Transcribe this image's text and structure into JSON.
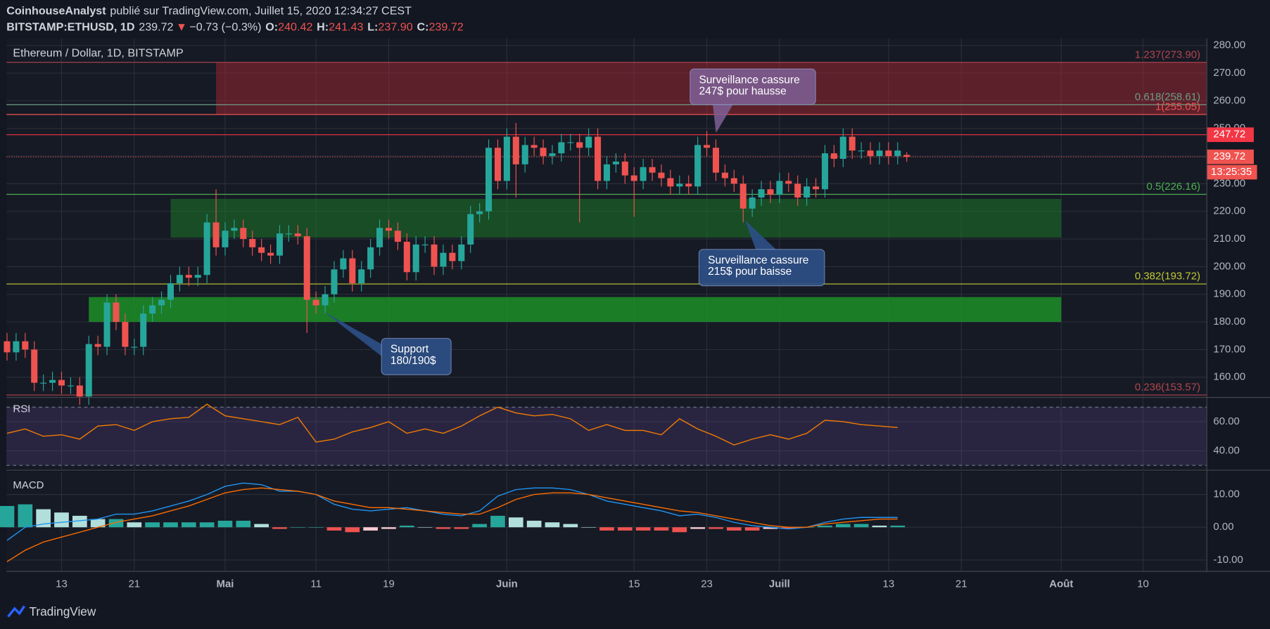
{
  "header": {
    "author": "CoinhouseAnalyst",
    "published": "publié sur TradingView.com, Juillet 15, 2020 12:34:27 CEST",
    "symbol": "BITSTAMP:ETHUSD, 1D",
    "last": "239.72",
    "arrow": "▼",
    "change": "−0.73 (−0.3%)",
    "o_label": "O:",
    "o": "240.42",
    "h_label": "H:",
    "h": "241.43",
    "l_label": "L:",
    "l": "237.90",
    "c_label": "C:",
    "c": "239.72"
  },
  "footer": {
    "brand": "TradingView"
  },
  "chart_data": [
    {
      "type": "candlestick",
      "title": "Ethereum / Dollar, 1D, BITSTAMP",
      "x": [
        6,
        7,
        8,
        9,
        10,
        11,
        12,
        13,
        14,
        15,
        16,
        17,
        18,
        19,
        20,
        21,
        22,
        23,
        24,
        25,
        26,
        27,
        28,
        29,
        30,
        31,
        32,
        33,
        34,
        35,
        36,
        37,
        38,
        39,
        40,
        41,
        42,
        43,
        44,
        45,
        46,
        47,
        48,
        49,
        50,
        51,
        52,
        53,
        54,
        55,
        56,
        57,
        58,
        59,
        60,
        61,
        62,
        63,
        64,
        65,
        66,
        67,
        68,
        69,
        70,
        71,
        72,
        73,
        74,
        75,
        76,
        77,
        78,
        79,
        80,
        81,
        82,
        83,
        84,
        85,
        86,
        87,
        88,
        89,
        90,
        91,
        92,
        93,
        94,
        95,
        96,
        97,
        98,
        99,
        100,
        101,
        102,
        103,
        104,
        105
      ],
      "open": [
        173,
        169,
        173,
        170,
        158,
        158,
        159,
        157,
        157,
        153,
        172,
        171,
        187,
        180,
        171,
        171,
        183,
        186,
        188,
        194,
        197,
        196,
        197,
        216,
        207,
        213,
        214,
        210,
        207,
        205,
        204,
        212,
        212,
        211,
        188,
        186,
        190,
        199,
        203,
        194,
        199,
        207,
        214,
        213,
        209,
        198,
        208,
        208,
        200,
        205,
        202,
        208,
        219,
        220,
        243,
        231,
        247,
        237,
        244,
        243,
        240,
        241,
        245,
        245,
        243,
        247,
        231,
        237,
        238,
        233,
        231,
        236,
        234,
        232,
        229,
        230,
        229,
        244,
        243,
        234,
        232,
        230,
        221,
        225,
        228,
        226,
        231,
        230,
        225,
        229,
        228,
        241,
        239,
        247,
        242,
        242,
        240,
        242,
        240,
        240.42
      ],
      "high": [
        176,
        176,
        176,
        173,
        161,
        162,
        162,
        160,
        160,
        175,
        175,
        190,
        190,
        183,
        174,
        186,
        189,
        191,
        197,
        200,
        200,
        200,
        219,
        228,
        216,
        217,
        217,
        213,
        210,
        208,
        215,
        215,
        215,
        214,
        191,
        193,
        202,
        206,
        206,
        202,
        210,
        217,
        217,
        216,
        212,
        211,
        211,
        211,
        208,
        208,
        211,
        222,
        223,
        246,
        246,
        250,
        252,
        247,
        247,
        246,
        244,
        248,
        248,
        248,
        250,
        250,
        240,
        241,
        241,
        236,
        239,
        239,
        237,
        235,
        233,
        233,
        247,
        249,
        246,
        237,
        235,
        233,
        228,
        231,
        231,
        234,
        234,
        233,
        232,
        232,
        244,
        244,
        250,
        250,
        245,
        245,
        245,
        245,
        245,
        241.43
      ],
      "low": [
        166,
        166,
        167,
        155,
        155,
        155,
        154,
        154,
        150,
        150,
        168,
        168,
        177,
        168,
        168,
        168,
        180,
        183,
        185,
        191,
        193,
        193,
        194,
        204,
        204,
        210,
        207,
        204,
        202,
        201,
        201,
        209,
        208,
        176,
        183,
        183,
        187,
        196,
        191,
        191,
        196,
        204,
        210,
        206,
        195,
        195,
        205,
        197,
        197,
        199,
        199,
        205,
        216,
        217,
        228,
        228,
        225,
        234,
        240,
        237,
        237,
        238,
        242,
        216,
        240,
        228,
        228,
        234,
        230,
        218,
        228,
        231,
        229,
        226,
        226,
        226,
        226,
        240,
        231,
        229,
        227,
        216,
        218,
        222,
        223,
        223,
        227,
        222,
        222,
        225,
        225,
        236,
        236,
        239,
        239,
        237,
        237,
        237,
        237,
        237.9
      ],
      "close": [
        169,
        173,
        170,
        158,
        158,
        159,
        157,
        157,
        153,
        172,
        171,
        187,
        180,
        171,
        171,
        183,
        186,
        188,
        194,
        197,
        196,
        197,
        216,
        207,
        213,
        214,
        210,
        207,
        205,
        204,
        212,
        212,
        211,
        188,
        186,
        190,
        199,
        203,
        194,
        199,
        207,
        214,
        213,
        209,
        198,
        208,
        208,
        200,
        205,
        202,
        208,
        219,
        220,
        243,
        231,
        247,
        237,
        244,
        243,
        240,
        241,
        245,
        245,
        243,
        247,
        231,
        237,
        238,
        233,
        231,
        236,
        234,
        232,
        229,
        230,
        229,
        244,
        243,
        234,
        232,
        230,
        221,
        225,
        228,
        226,
        231,
        230,
        225,
        229,
        228,
        241,
        239,
        247,
        242,
        242,
        240,
        242,
        240,
        242,
        239.72
      ],
      "up_color": "#26a69a",
      "down_color": "#ef5350",
      "xlim": [
        5.94,
        138.02
      ],
      "xticks": [
        {
          "value": 12,
          "label": "13"
        },
        {
          "value": 20,
          "label": "21"
        },
        {
          "value": 30,
          "label": "Mai"
        },
        {
          "value": 40,
          "label": "11"
        },
        {
          "value": 48,
          "label": "19"
        },
        {
          "value": 61,
          "label": "Juin"
        },
        {
          "value": 75,
          "label": "15"
        },
        {
          "value": 83,
          "label": "23"
        },
        {
          "value": 91,
          "label": "Juill"
        },
        {
          "value": 103,
          "label": "13"
        },
        {
          "value": 111,
          "label": "21"
        },
        {
          "value": 122,
          "label": "Août"
        },
        {
          "value": 131,
          "label": "10"
        }
      ],
      "ylim": [
        152.98,
        282.63
      ],
      "yticks": [
        {
          "value": 160,
          "label": "160.00"
        },
        {
          "value": 170,
          "label": "170.00"
        },
        {
          "value": 180,
          "label": "180.00"
        },
        {
          "value": 190,
          "label": "190.00"
        },
        {
          "value": 200,
          "label": "200.00"
        },
        {
          "value": 210,
          "label": "210.00"
        },
        {
          "value": 220,
          "label": "220.00"
        },
        {
          "value": 230,
          "label": "230.00"
        },
        {
          "value": 240,
          "label": "240.00"
        },
        {
          "value": 250,
          "label": "250.00"
        },
        {
          "value": 260,
          "label": "260.00"
        },
        {
          "value": 270,
          "label": "270.00"
        },
        {
          "value": 280,
          "label": "280.00"
        }
      ],
      "grid": true,
      "zones": [
        {
          "from": 255.05,
          "to": 273.9,
          "x_from": 29,
          "color": "rgba(178,40,51,0.45)"
        },
        {
          "from": 210.5,
          "to": 224.5,
          "x_from": 24,
          "x_to": 122,
          "color": "rgba(27,120,40,0.55)"
        },
        {
          "from": 180,
          "to": 189,
          "x_from": 15,
          "x_to": 122,
          "color": "rgba(30,150,40,0.8)"
        }
      ],
      "levels": [
        {
          "label": "1.237(273.90)",
          "value": 273.9,
          "color": "#b2454d"
        },
        {
          "label": "0.618(258.61)",
          "value": 258.61,
          "color": "#6d9e84"
        },
        {
          "label": "1(255.05)",
          "value": 255.05,
          "color": "#ef5350"
        },
        {
          "label": "0.5(226.16)",
          "value": 226.16,
          "color": "#4caf50"
        },
        {
          "label": "0.382(193.72)",
          "value": 193.72,
          "color": "#c0ca33"
        },
        {
          "label": "0.236(153.57)",
          "value": 153.57,
          "color": "#b2454d"
        }
      ],
      "alert_line": {
        "value": 247.72,
        "label": "247.72",
        "color": "#f23645"
      },
      "last_price": {
        "value": 239.72,
        "label": "239.72",
        "color": "#ef5350"
      },
      "countdown": "13:25:35",
      "annotations": [
        {
          "lines": [
            "Surveillance cassure",
            "247$ pour hausse"
          ],
          "color": "rgba(126,96,150,0.85)"
        },
        {
          "lines": [
            "Surveillance cassure",
            "215$ pour baisse"
          ],
          "color": "rgba(45,80,135,0.9)"
        },
        {
          "lines": [
            "Support",
            "180/190$"
          ],
          "color": "rgba(45,80,135,0.9)"
        }
      ]
    },
    {
      "type": "line",
      "title": "RSI",
      "x": [
        6,
        8,
        10,
        12,
        14,
        16,
        18,
        20,
        22,
        24,
        26,
        28,
        30,
        32,
        34,
        36,
        38,
        40,
        42,
        44,
        46,
        48,
        50,
        52,
        54,
        56,
        58,
        60,
        62,
        64,
        66,
        68,
        70,
        72,
        74,
        76,
        78,
        80,
        82,
        84,
        86,
        88,
        90,
        92,
        94,
        96,
        98,
        100,
        102,
        104
      ],
      "series": [
        {
          "color": "#f57c00",
          "values": [
            52,
            55,
            50,
            51,
            48,
            57,
            58,
            54,
            60,
            62,
            63,
            72,
            64,
            62,
            60,
            58,
            63,
            46,
            48,
            53,
            56,
            60,
            52,
            55,
            52,
            57,
            64,
            70,
            66,
            64,
            65,
            62,
            54,
            58,
            54,
            54,
            51,
            62,
            55,
            50,
            44,
            48,
            51,
            48,
            52,
            61,
            60,
            58,
            57,
            56
          ]
        }
      ],
      "ylim": [
        27.2,
        76.1
      ],
      "yticks": [
        {
          "value": 40,
          "label": "40.00"
        },
        {
          "value": 60,
          "label": "60.00"
        }
      ],
      "bands": [
        30,
        70
      ],
      "band_color": "rgba(126,87,194,0.18)"
    },
    {
      "type": "macd",
      "title": "MACD",
      "x": [
        6,
        8,
        10,
        12,
        14,
        16,
        18,
        20,
        22,
        24,
        26,
        28,
        30,
        32,
        34,
        36,
        38,
        40,
        42,
        44,
        46,
        48,
        50,
        52,
        54,
        56,
        58,
        60,
        62,
        64,
        66,
        68,
        70,
        72,
        74,
        76,
        78,
        80,
        82,
        84,
        86,
        88,
        90,
        92,
        94,
        96,
        98,
        100,
        102,
        104
      ],
      "series": [
        {
          "color": "#2196f3",
          "values": [
            -4,
            0,
            1,
            1.5,
            2,
            2.5,
            4,
            4,
            5,
            6.5,
            8,
            10,
            12.5,
            13.5,
            13,
            11,
            11,
            10,
            7,
            5.5,
            5,
            5.5,
            6,
            5,
            4,
            3.5,
            5,
            9.5,
            11.5,
            12,
            12,
            11.5,
            10,
            8,
            7,
            6,
            5,
            3.5,
            4,
            3,
            1.5,
            0.5,
            0,
            -0.5,
            0,
            1.5,
            2.5,
            3,
            3,
            3
          ]
        },
        {
          "color": "#ff6d00",
          "values": [
            -10.5,
            -7,
            -4.5,
            -3,
            -1.5,
            0,
            1.5,
            2.5,
            3.5,
            5,
            6.5,
            8.5,
            10.5,
            11.5,
            12,
            11.5,
            11,
            10,
            8,
            7,
            6,
            6,
            5.5,
            5,
            4.5,
            4,
            4,
            6,
            8.5,
            10,
            10.5,
            10.5,
            10,
            9,
            8,
            7,
            6,
            5,
            4.5,
            3.5,
            2.5,
            1.5,
            0.5,
            0,
            0,
            1,
            1.5,
            2,
            2.5,
            2.5
          ]
        }
      ],
      "histogram": [
        6.5,
        7,
        5.5,
        4.5,
        3.5,
        2.5,
        2.5,
        1.5,
        1.5,
        1.5,
        1.5,
        1.5,
        2,
        2,
        1,
        -0.5,
        0,
        0,
        -1,
        -1.5,
        -1,
        -0.5,
        0.5,
        0,
        -0.5,
        -0.5,
        1,
        3.5,
        3,
        2,
        1.5,
        1,
        0,
        -1,
        -1,
        -1,
        -1,
        -1.5,
        -0.5,
        -0.5,
        -1,
        -1,
        -0.5,
        -0.5,
        0,
        0.5,
        1,
        1,
        0.5,
        0.5
      ],
      "hist_colors": [
        "#26a69a",
        "#b2dfdb",
        "#ef5350",
        "#ffcdd2"
      ],
      "ylim": [
        -13.46,
        16.91
      ],
      "yticks": [
        {
          "value": -10,
          "label": "-10.00"
        },
        {
          "value": 0,
          "label": "0.00"
        },
        {
          "value": 10,
          "label": "10.00"
        }
      ]
    }
  ]
}
